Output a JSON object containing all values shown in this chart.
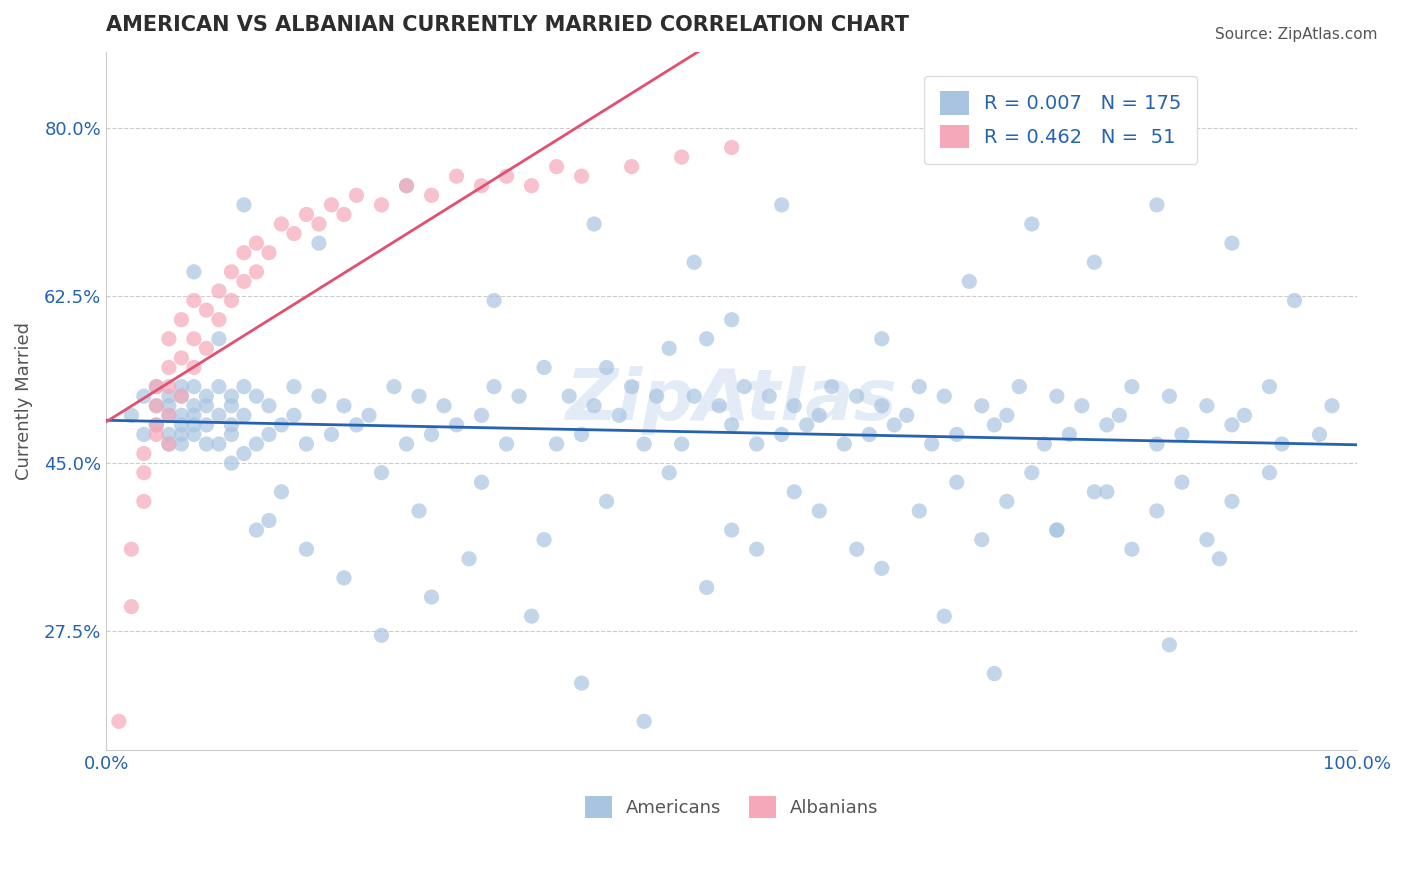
{
  "title": "AMERICAN VS ALBANIAN CURRENTLY MARRIED CORRELATION CHART",
  "source_text": "Source: ZipAtlas.com",
  "xlabel": "",
  "ylabel": "Currently Married",
  "xlim": [
    0.0,
    1.0
  ],
  "ylim": [
    0.15,
    0.88
  ],
  "xticks": [
    0.0,
    0.25,
    0.5,
    0.75,
    1.0
  ],
  "xticklabels": [
    "0.0%",
    "",
    "",
    "",
    "100.0%"
  ],
  "yticks": [
    0.275,
    0.45,
    0.625,
    0.8
  ],
  "yticklabels": [
    "27.5%",
    "45.0%",
    "62.5%",
    "80.0%"
  ],
  "american_color": "#a8c4e0",
  "albanian_color": "#f4a8b8",
  "american_line_color": "#2563b0",
  "albanian_line_color": "#e05070",
  "grid_color": "#cccccc",
  "background_color": "#ffffff",
  "legend_R_american": "0.007",
  "legend_N_american": "175",
  "legend_R_albanian": "0.462",
  "legend_N_albanian": "51",
  "legend_text_color": "#2563b0",
  "title_color": "#2d2d2d",
  "american_x": [
    0.02,
    0.03,
    0.03,
    0.04,
    0.04,
    0.04,
    0.05,
    0.05,
    0.05,
    0.05,
    0.05,
    0.06,
    0.06,
    0.06,
    0.06,
    0.06,
    0.06,
    0.07,
    0.07,
    0.07,
    0.07,
    0.07,
    0.08,
    0.08,
    0.08,
    0.08,
    0.09,
    0.09,
    0.09,
    0.1,
    0.1,
    0.1,
    0.1,
    0.11,
    0.11,
    0.12,
    0.12,
    0.13,
    0.13,
    0.14,
    0.15,
    0.15,
    0.16,
    0.17,
    0.18,
    0.19,
    0.2,
    0.21,
    0.22,
    0.23,
    0.24,
    0.25,
    0.26,
    0.27,
    0.28,
    0.3,
    0.31,
    0.32,
    0.33,
    0.35,
    0.36,
    0.37,
    0.38,
    0.39,
    0.4,
    0.41,
    0.42,
    0.43,
    0.44,
    0.45,
    0.46,
    0.47,
    0.48,
    0.49,
    0.5,
    0.5,
    0.51,
    0.52,
    0.53,
    0.54,
    0.55,
    0.56,
    0.57,
    0.58,
    0.59,
    0.6,
    0.61,
    0.62,
    0.63,
    0.64,
    0.65,
    0.66,
    0.67,
    0.68,
    0.7,
    0.71,
    0.72,
    0.73,
    0.75,
    0.76,
    0.77,
    0.78,
    0.8,
    0.81,
    0.82,
    0.84,
    0.85,
    0.86,
    0.88,
    0.9,
    0.91,
    0.93,
    0.94,
    0.95,
    0.97,
    0.98,
    0.1,
    0.12,
    0.14,
    0.16,
    0.25,
    0.3,
    0.35,
    0.4,
    0.45,
    0.5,
    0.55,
    0.6,
    0.65,
    0.68,
    0.7,
    0.72,
    0.74,
    0.76,
    0.79,
    0.82,
    0.84,
    0.86,
    0.88,
    0.9,
    0.11,
    0.13,
    0.19,
    0.22,
    0.26,
    0.29,
    0.34,
    0.38,
    0.43,
    0.48,
    0.52,
    0.57,
    0.62,
    0.67,
    0.71,
    0.76,
    0.8,
    0.85,
    0.89,
    0.93,
    0.07,
    0.09,
    0.11,
    0.17,
    0.24,
    0.31,
    0.39,
    0.47,
    0.54,
    0.62,
    0.69,
    0.74,
    0.79,
    0.84,
    0.9
  ],
  "american_y": [
    0.5,
    0.52,
    0.48,
    0.51,
    0.49,
    0.53,
    0.5,
    0.48,
    0.52,
    0.47,
    0.51,
    0.49,
    0.53,
    0.5,
    0.47,
    0.52,
    0.48,
    0.51,
    0.49,
    0.53,
    0.5,
    0.48,
    0.52,
    0.47,
    0.51,
    0.49,
    0.5,
    0.53,
    0.47,
    0.52,
    0.48,
    0.51,
    0.49,
    0.5,
    0.53,
    0.47,
    0.52,
    0.48,
    0.51,
    0.49,
    0.5,
    0.53,
    0.47,
    0.52,
    0.48,
    0.51,
    0.49,
    0.5,
    0.44,
    0.53,
    0.47,
    0.52,
    0.48,
    0.51,
    0.49,
    0.5,
    0.53,
    0.47,
    0.52,
    0.55,
    0.47,
    0.52,
    0.48,
    0.51,
    0.55,
    0.5,
    0.53,
    0.47,
    0.52,
    0.57,
    0.47,
    0.52,
    0.58,
    0.51,
    0.49,
    0.6,
    0.53,
    0.47,
    0.52,
    0.48,
    0.51,
    0.49,
    0.5,
    0.53,
    0.47,
    0.52,
    0.48,
    0.51,
    0.49,
    0.5,
    0.53,
    0.47,
    0.52,
    0.48,
    0.51,
    0.49,
    0.5,
    0.53,
    0.47,
    0.52,
    0.48,
    0.51,
    0.49,
    0.5,
    0.53,
    0.47,
    0.52,
    0.48,
    0.51,
    0.49,
    0.5,
    0.53,
    0.47,
    0.62,
    0.48,
    0.51,
    0.45,
    0.38,
    0.42,
    0.36,
    0.4,
    0.43,
    0.37,
    0.41,
    0.44,
    0.38,
    0.42,
    0.36,
    0.4,
    0.43,
    0.37,
    0.41,
    0.44,
    0.38,
    0.42,
    0.36,
    0.4,
    0.43,
    0.37,
    0.41,
    0.46,
    0.39,
    0.33,
    0.27,
    0.31,
    0.35,
    0.29,
    0.22,
    0.18,
    0.32,
    0.36,
    0.4,
    0.34,
    0.29,
    0.23,
    0.38,
    0.42,
    0.26,
    0.35,
    0.44,
    0.65,
    0.58,
    0.72,
    0.68,
    0.74,
    0.62,
    0.7,
    0.66,
    0.72,
    0.58,
    0.64,
    0.7,
    0.66,
    0.72,
    0.68
  ],
  "albanian_x": [
    0.01,
    0.02,
    0.02,
    0.03,
    0.03,
    0.03,
    0.04,
    0.04,
    0.04,
    0.04,
    0.05,
    0.05,
    0.05,
    0.05,
    0.05,
    0.06,
    0.06,
    0.06,
    0.07,
    0.07,
    0.07,
    0.08,
    0.08,
    0.09,
    0.09,
    0.1,
    0.1,
    0.11,
    0.11,
    0.12,
    0.12,
    0.13,
    0.14,
    0.15,
    0.16,
    0.17,
    0.18,
    0.19,
    0.2,
    0.22,
    0.24,
    0.26,
    0.28,
    0.3,
    0.32,
    0.34,
    0.36,
    0.38,
    0.42,
    0.46,
    0.5
  ],
  "albanian_y": [
    0.18,
    0.3,
    0.36,
    0.41,
    0.44,
    0.46,
    0.48,
    0.49,
    0.51,
    0.53,
    0.47,
    0.5,
    0.53,
    0.55,
    0.58,
    0.52,
    0.56,
    0.6,
    0.55,
    0.58,
    0.62,
    0.57,
    0.61,
    0.6,
    0.63,
    0.62,
    0.65,
    0.64,
    0.67,
    0.65,
    0.68,
    0.67,
    0.7,
    0.69,
    0.71,
    0.7,
    0.72,
    0.71,
    0.73,
    0.72,
    0.74,
    0.73,
    0.75,
    0.74,
    0.75,
    0.74,
    0.76,
    0.75,
    0.76,
    0.77,
    0.78
  ],
  "marker_size": 120,
  "marker_alpha": 0.7,
  "line_width": 2.0,
  "watermark_text": "ZipAtlas",
  "watermark_color": "#c8d8f0",
  "watermark_alpha": 0.5
}
